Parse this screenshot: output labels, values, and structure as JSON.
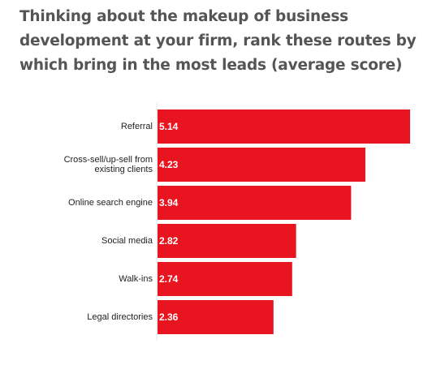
{
  "chart_data": {
    "type": "bar",
    "orientation": "horizontal",
    "title": "Thinking about the makeup of business development at your firm, rank these routes by which bring in the most leads (average score)",
    "categories": [
      "Referral",
      "Cross-sell/up-sell from existing clients",
      "Online search engine",
      "Social media",
      "Walk-ins",
      "Legal directories"
    ],
    "values": [
      5.14,
      4.23,
      3.94,
      2.82,
      2.74,
      2.36
    ],
    "value_labels": [
      "5.14",
      "4.23",
      "3.94",
      "2.82",
      "2.74",
      "2.36"
    ],
    "xlabel": "",
    "ylabel": "",
    "xlim": [
      0,
      5.14
    ],
    "grid": false,
    "legend": "none",
    "bar_color": "#e8141f"
  }
}
